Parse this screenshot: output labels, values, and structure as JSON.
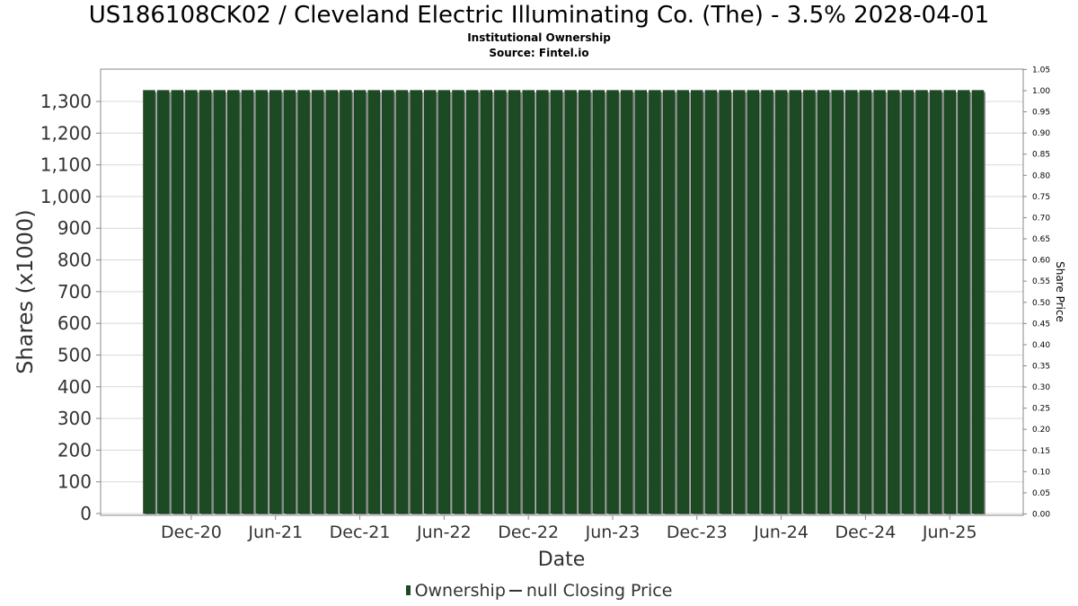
{
  "header": {
    "title": "US186108CK02 / Cleveland Electric Illuminating Co. (The) - 3.5% 2028-04-01",
    "subtitle": "Institutional Ownership",
    "source": "Source: Fintel.io"
  },
  "legend": {
    "ownership_label": "Ownership",
    "price_label": "null Closing Price"
  },
  "colors": {
    "bar": "#1b4a23",
    "bar_shadow": "#8a8a8a",
    "grid": "#d8d8d8",
    "axis": "#888888"
  },
  "chart_data": {
    "type": "bar",
    "title": "US186108CK02 / Cleveland Electric Illuminating Co. (The) - 3.5% 2028-04-01",
    "xlabel": "Date",
    "ylabel": "Shares (x1000)",
    "y2label": "Share Price",
    "ylim": [
      0,
      1340
    ],
    "y2lim": [
      0,
      1.05
    ],
    "yticks": [
      "0",
      "100",
      "200",
      "300",
      "400",
      "500",
      "600",
      "700",
      "800",
      "900",
      "1,000",
      "1,100",
      "1,200",
      "1,300"
    ],
    "y2ticks": [
      "0.00",
      "0.05",
      "0.10",
      "0.15",
      "0.20",
      "0.25",
      "0.30",
      "0.35",
      "0.40",
      "0.45",
      "0.50",
      "0.55",
      "0.60",
      "0.65",
      "0.70",
      "0.75",
      "0.80",
      "0.85",
      "0.90",
      "0.95",
      "1.00",
      "1.05"
    ],
    "xticks": [
      "Dec-20",
      "Jun-21",
      "Dec-21",
      "Jun-22",
      "Dec-22",
      "Jun-23",
      "Dec-23",
      "Jun-24",
      "Dec-24",
      "Jun-25"
    ],
    "grid": true,
    "legend_position": "bottom",
    "series": [
      {
        "name": "Ownership",
        "start": "2020-09",
        "end": "2025-08",
        "frequency": "monthly",
        "values": [
          1335,
          1335,
          1335,
          1335,
          1335,
          1335,
          1335,
          1335,
          1335,
          1335,
          1335,
          1335,
          1335,
          1335,
          1335,
          1335,
          1335,
          1335,
          1335,
          1335,
          1335,
          1335,
          1335,
          1335,
          1335,
          1335,
          1335,
          1335,
          1335,
          1335,
          1335,
          1335,
          1335,
          1335,
          1335,
          1335,
          1335,
          1335,
          1335,
          1335,
          1335,
          1335,
          1335,
          1335,
          1335,
          1335,
          1335,
          1335,
          1335,
          1335,
          1335,
          1335,
          1335,
          1335,
          1335,
          1335,
          1335,
          1335,
          1335,
          1335
        ]
      },
      {
        "name": "null Closing Price",
        "values": []
      }
    ]
  }
}
